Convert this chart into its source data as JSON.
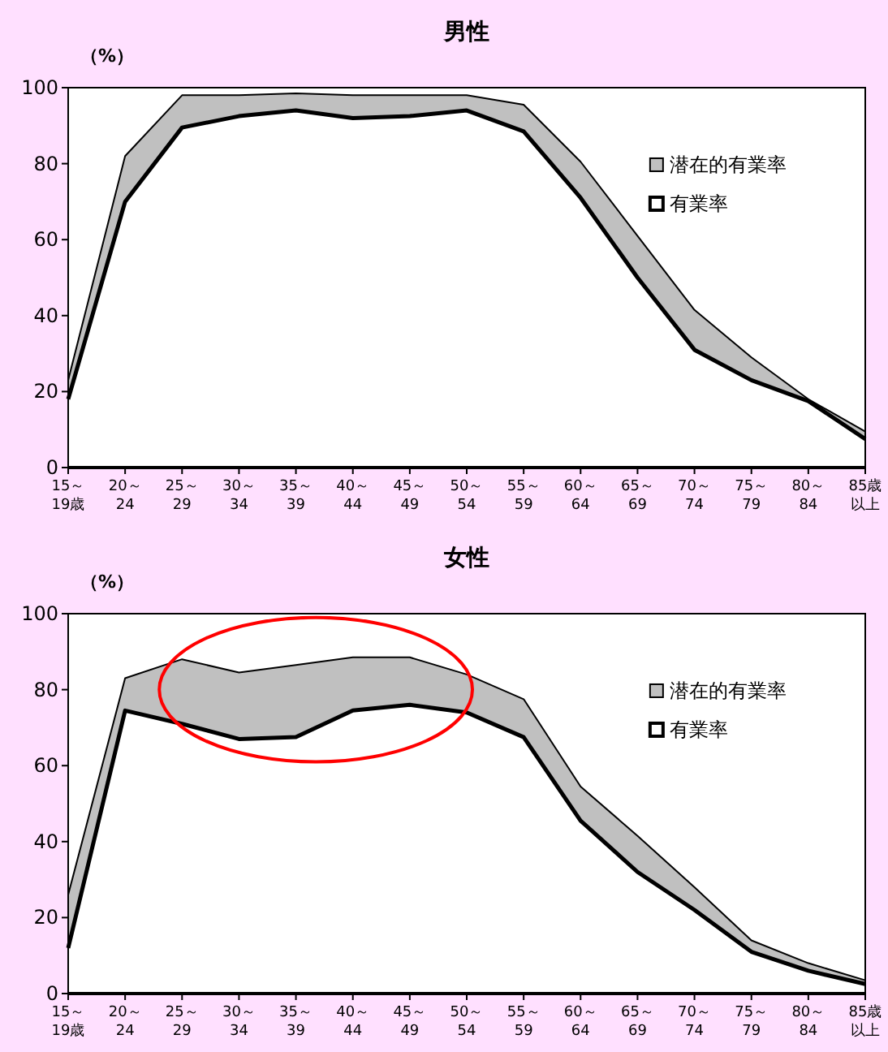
{
  "chart_data": [
    {
      "type": "area",
      "title": "男性",
      "ylabel": "（%）",
      "categories": [
        "15～19歳",
        "20～24",
        "25～29",
        "30～34",
        "35～39",
        "40～44",
        "45～49",
        "50～54",
        "55～59",
        "60～64",
        "65～69",
        "70～74",
        "75～79",
        "80～84",
        "85歳以上"
      ],
      "ylim": [
        0,
        100
      ],
      "yticks": [
        0,
        20,
        40,
        60,
        80,
        100
      ],
      "grid": false,
      "legend": "right",
      "series": [
        {
          "name": "潜在的有業率",
          "color": "#c0c0c0",
          "values": [
            23,
            82,
            98,
            98,
            98.5,
            98,
            98,
            98,
            95.5,
            80.5,
            61,
            41.5,
            29,
            18,
            9.5
          ]
        },
        {
          "name": "有業率",
          "color": "#ffffff",
          "values": [
            18,
            70,
            89.5,
            92.5,
            94,
            92,
            92.5,
            94,
            88.5,
            71,
            50,
            31,
            23,
            17.5,
            7.5
          ]
        }
      ]
    },
    {
      "type": "area",
      "title": "女性",
      "ylabel": "（%）",
      "categories": [
        "15～19歳",
        "20～24",
        "25～29",
        "30～34",
        "35～39",
        "40～44",
        "45～49",
        "50～54",
        "55～59",
        "60～64",
        "65～69",
        "70～74",
        "75～79",
        "80～84",
        "85歳以上"
      ],
      "ylim": [
        0,
        100
      ],
      "yticks": [
        0,
        20,
        40,
        60,
        80,
        100
      ],
      "grid": false,
      "legend": "right",
      "series": [
        {
          "name": "潜在的有業率",
          "color": "#c0c0c0",
          "values": [
            26,
            83,
            88,
            84.5,
            86.5,
            88.5,
            88.5,
            84,
            77.5,
            54.5,
            41.5,
            28,
            14,
            8,
            3.5
          ]
        },
        {
          "name": "有業率",
          "color": "#ffffff",
          "values": [
            12,
            74.5,
            71,
            67,
            67.5,
            74.5,
            76,
            74,
            67.5,
            45.5,
            32,
            22,
            11,
            6,
            2.5
          ]
        }
      ]
    }
  ]
}
